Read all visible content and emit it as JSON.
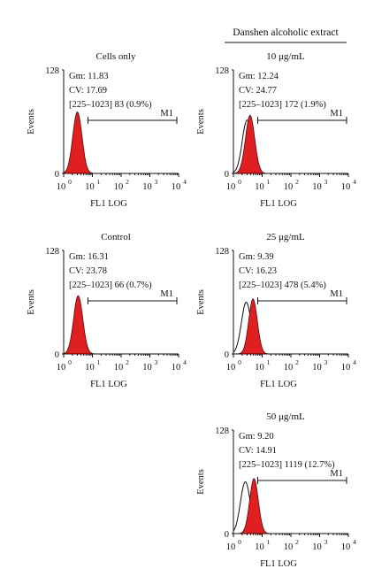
{
  "header": {
    "group_label": "Danshen alcoholic extract"
  },
  "chart_data": [
    {
      "type": "histogram",
      "title": "Cells only",
      "stats": [
        "Gm: 11.83",
        "CV: 17.69",
        "[225–1023] 83  (0.9%)"
      ],
      "marker_label": "M1",
      "marker_range": [
        7,
        10000
      ],
      "xlabel": "FL1 LOG",
      "ylabel": "Events",
      "xscale": "log",
      "xlim": [
        1,
        10000
      ],
      "xticks": [
        "10",
        "10",
        "10",
        "10",
        "10"
      ],
      "xtick_exps": [
        "0",
        "1",
        "2",
        "3",
        "4"
      ],
      "yticks": [
        "0",
        "128"
      ],
      "ylim": [
        0,
        128
      ],
      "series": [
        {
          "filled": true,
          "color": "#e02020",
          "peak": 3.0,
          "peak_events": 76,
          "spread": 0.16
        }
      ]
    },
    {
      "type": "histogram",
      "title": "10 μg/mL",
      "stats": [
        "Gm: 12.24",
        "CV: 24.77",
        "[225–1023] 172  (1.9%)"
      ],
      "marker_label": "M1",
      "marker_range": [
        7,
        10000
      ],
      "xlabel": "FL1 LOG",
      "ylabel": "Events",
      "xscale": "log",
      "xlim": [
        1,
        10000
      ],
      "xticks": [
        "10",
        "10",
        "10",
        "10",
        "10"
      ],
      "xtick_exps": [
        "0",
        "1",
        "2",
        "3",
        "4"
      ],
      "yticks": [
        "0",
        "128"
      ],
      "ylim": [
        0,
        128
      ],
      "series": [
        {
          "filled": false,
          "color": "#111111",
          "peak": 3.0,
          "peak_events": 66,
          "spread": 0.17
        },
        {
          "filled": true,
          "color": "#e02020",
          "peak": 3.8,
          "peak_events": 72,
          "spread": 0.16
        }
      ]
    },
    {
      "type": "histogram",
      "title": "Control",
      "stats": [
        "Gm: 16.31",
        "CV: 23.78",
        "[225–1023] 66  (0.7%)"
      ],
      "marker_label": "M1",
      "marker_range": [
        7,
        10000
      ],
      "xlabel": "FL1 LOG",
      "ylabel": "Events",
      "xscale": "log",
      "xlim": [
        1,
        10000
      ],
      "xticks": [
        "10",
        "10",
        "10",
        "10",
        "10"
      ],
      "xtick_exps": [
        "0",
        "1",
        "2",
        "3",
        "4"
      ],
      "yticks": [
        "0",
        "128"
      ],
      "ylim": [
        0,
        128
      ],
      "series": [
        {
          "filled": true,
          "color": "#e02020",
          "peak": 3.2,
          "peak_events": 72,
          "spread": 0.16
        }
      ]
    },
    {
      "type": "histogram",
      "title": "25 μg/mL",
      "stats": [
        "Gm: 9.39",
        "CV: 16.23",
        "[225–1023] 478  (5.4%)"
      ],
      "marker_label": "M1",
      "marker_range": [
        7,
        10000
      ],
      "xlabel": "FL1 LOG",
      "ylabel": "Events",
      "xscale": "log",
      "xlim": [
        1,
        10000
      ],
      "xticks": [
        "10",
        "10",
        "10",
        "10",
        "10"
      ],
      "xtick_exps": [
        "0",
        "1",
        "2",
        "3",
        "4"
      ],
      "yticks": [
        "0",
        "128"
      ],
      "ylim": [
        0,
        128
      ],
      "series": [
        {
          "filled": false,
          "color": "#111111",
          "peak": 2.8,
          "peak_events": 64,
          "spread": 0.17
        },
        {
          "filled": true,
          "color": "#e02020",
          "peak": 4.8,
          "peak_events": 68,
          "spread": 0.15
        }
      ]
    },
    {
      "type": "histogram",
      "title": "50 μg/mL",
      "stats": [
        "Gm: 9.20",
        "CV: 14.91",
        "[225–1023] 1119  (12.7%)"
      ],
      "marker_label": "M1",
      "marker_range": [
        7,
        10000
      ],
      "xlabel": "FL1 LOG",
      "ylabel": "Events",
      "xscale": "log",
      "xlim": [
        1,
        10000
      ],
      "xticks": [
        "10",
        "10",
        "10",
        "10",
        "10"
      ],
      "xtick_exps": [
        "0",
        "1",
        "2",
        "3",
        "4"
      ],
      "yticks": [
        "0",
        "128"
      ],
      "ylim": [
        0,
        128
      ],
      "series": [
        {
          "filled": false,
          "color": "#111111",
          "peak": 2.6,
          "peak_events": 64,
          "spread": 0.17
        },
        {
          "filled": true,
          "color": "#e02020",
          "peak": 5.2,
          "peak_events": 68,
          "spread": 0.15
        }
      ]
    }
  ]
}
